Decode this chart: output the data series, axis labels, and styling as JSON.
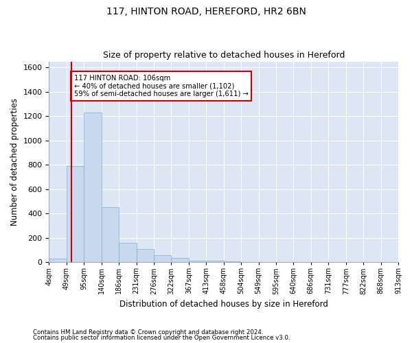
{
  "title1": "117, HINTON ROAD, HEREFORD, HR2 6BN",
  "title2": "Size of property relative to detached houses in Hereford",
  "xlabel": "Distribution of detached houses by size in Hereford",
  "ylabel": "Number of detached properties",
  "footnote1": "Contains HM Land Registry data © Crown copyright and database right 2024.",
  "footnote2": "Contains public sector information licensed under the Open Government Licence v3.0.",
  "annotation_line1": "117 HINTON ROAD: 106sqm",
  "annotation_line2": "← 40% of detached houses are smaller (1,102)",
  "annotation_line3": "59% of semi-detached houses are larger (1,611) →",
  "property_sqm": 106,
  "bar_color": "#c8d8ee",
  "bar_edge_color": "#7aafd4",
  "marker_line_color": "#cc0000",
  "annotation_box_color": "#cc0000",
  "background_color": "#dce6f5",
  "ylim": [
    0,
    1650
  ],
  "yticks": [
    0,
    200,
    400,
    600,
    800,
    1000,
    1200,
    1400,
    1600
  ],
  "bin_labels": [
    "4sqm",
    "49sqm",
    "95sqm",
    "140sqm",
    "186sqm",
    "231sqm",
    "276sqm",
    "322sqm",
    "367sqm",
    "413sqm",
    "458sqm",
    "504sqm",
    "549sqm",
    "595sqm",
    "640sqm",
    "686sqm",
    "731sqm",
    "777sqm",
    "822sqm",
    "868sqm",
    "913sqm"
  ],
  "bar_heights": [
    30,
    790,
    1230,
    450,
    160,
    110,
    55,
    35,
    15,
    15,
    5,
    2,
    1,
    1,
    0,
    0,
    0,
    0,
    0,
    0
  ],
  "n_bins": 20,
  "property_bin_index": 1.27
}
